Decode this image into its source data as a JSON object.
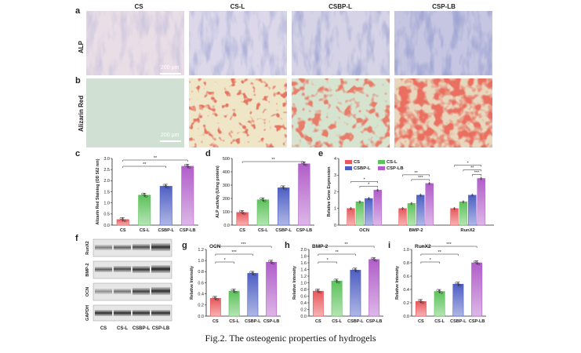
{
  "figure": {
    "caption": "Fig.2. The osteogenic properties of hydrogels",
    "groups": [
      "CS",
      "CS-L",
      "CSBP-L",
      "CSP-LB"
    ],
    "panel_letters": [
      "a",
      "b",
      "c",
      "d",
      "e",
      "f",
      "g",
      "h",
      "i"
    ],
    "row_labels": {
      "a": "ALP",
      "b": "Alizarin Red"
    },
    "scale_bar": "200 μm",
    "western_blot_labels": [
      "RunX2",
      "BMP-2",
      "OCN",
      "GAPDH"
    ],
    "colors": {
      "CS": "#e8575a",
      "CS-L": "#5cc25a",
      "CSBP-L": "#4e5fc4",
      "CSP-LB": "#b15ec9"
    }
  },
  "chart_data": [
    {
      "id": "c",
      "type": "bar",
      "categories": [
        "CS",
        "CS-L",
        "CSBP-L",
        "CSP-LB"
      ],
      "values": [
        0.25,
        1.35,
        1.75,
        2.65
      ],
      "ylabel": "Alizarin Red Staining (OD 562 nm)",
      "ylim": [
        0,
        3.0
      ],
      "yticks": [
        0,
        0.5,
        1.0,
        1.5,
        2.0,
        2.5,
        3.0
      ],
      "sig": [
        {
          "from": 0,
          "to": 2,
          "label": "**"
        },
        {
          "from": 0,
          "to": 3,
          "label": "**"
        }
      ]
    },
    {
      "id": "d",
      "type": "bar",
      "categories": [
        "CS",
        "CS-L",
        "CSBP-L",
        "CSP-LB"
      ],
      "values": [
        95,
        190,
        280,
        460
      ],
      "ylabel": "ALP activity (U/mg protein)",
      "ylim": [
        0,
        500
      ],
      "yticks": [
        0,
        100,
        200,
        300,
        400,
        500
      ],
      "sig": [
        {
          "from": 0,
          "to": 3,
          "label": "**"
        }
      ]
    },
    {
      "id": "e",
      "type": "bar",
      "groups": [
        "OCN",
        "BMP-2",
        "RunX2"
      ],
      "series": [
        {
          "name": "CS",
          "values": [
            1.0,
            1.0,
            1.0
          ]
        },
        {
          "name": "CS-L",
          "values": [
            1.4,
            1.3,
            1.4
          ]
        },
        {
          "name": "CSBP-L",
          "values": [
            1.6,
            1.8,
            1.8
          ]
        },
        {
          "name": "CSP-LB",
          "values": [
            2.1,
            2.5,
            2.8
          ]
        }
      ],
      "ylabel": "Relative Gene Expression",
      "ylim": [
        0,
        4
      ],
      "yticks": [
        0,
        1,
        2,
        3,
        4
      ],
      "legend": "top-left",
      "sig": [
        {
          "group": 0,
          "labels": [
            "*",
            "*"
          ]
        },
        {
          "group": 1,
          "labels": [
            "***",
            "**"
          ]
        },
        {
          "group": 2,
          "labels": [
            "***",
            "**",
            "*"
          ]
        }
      ]
    },
    {
      "id": "g",
      "type": "bar",
      "title": "OCN",
      "categories": [
        "CS",
        "CS-L",
        "CSBP-L",
        "CSP-LB"
      ],
      "values": [
        0.32,
        0.45,
        0.77,
        0.97
      ],
      "ylabel": "Relative Intensity",
      "ylim": [
        0,
        1.2
      ],
      "yticks": [
        0,
        0.2,
        0.4,
        0.6,
        0.8,
        1.0,
        1.2
      ],
      "sig": [
        {
          "label": "*"
        },
        {
          "label": "***"
        },
        {
          "label": "***"
        }
      ]
    },
    {
      "id": "h",
      "type": "bar",
      "title": "BMP-2",
      "categories": [
        "CS",
        "CS-L",
        "CSBP-L",
        "CSP-LB"
      ],
      "values": [
        0.75,
        1.05,
        1.38,
        1.7
      ],
      "ylabel": "Relative Intensity",
      "ylim": [
        0,
        2.0
      ],
      "yticks": [
        0,
        0.2,
        0.4,
        0.6,
        0.8,
        1.0,
        1.2,
        1.4,
        1.6,
        1.8,
        2.0
      ],
      "sig": [
        {
          "label": "*"
        },
        {
          "label": "**"
        },
        {
          "label": "**"
        }
      ]
    },
    {
      "id": "i",
      "type": "bar",
      "title": "RunX2",
      "categories": [
        "CS",
        "CS-L",
        "CSBP-L",
        "CSP-LB"
      ],
      "values": [
        0.22,
        0.37,
        0.48,
        0.8
      ],
      "ylabel": "Relative Intensity",
      "ylim": [
        0,
        1.0
      ],
      "yticks": [
        0,
        0.2,
        0.4,
        0.6,
        0.8,
        1.0
      ],
      "sig": [
        {
          "label": "*"
        },
        {
          "label": "**"
        },
        {
          "label": "***"
        }
      ]
    }
  ]
}
